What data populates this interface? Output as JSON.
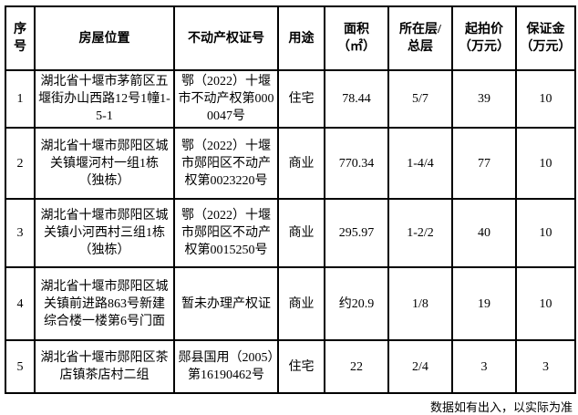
{
  "table": {
    "headers": {
      "no": "序\n号",
      "location": "房屋位置",
      "cert": "不动产权证号",
      "use": "用途",
      "area": "面积\n（㎡）",
      "floor": "所在层/\n总层",
      "start_price": "起拍价\n（万元）",
      "deposit": "保证金\n（万元）"
    },
    "rows": [
      {
        "no": "1",
        "location": "湖北省十堰市茅箭区五堰街办山西路12号1幢1-5-1",
        "cert": "鄂（2022）十堰市不动产权第0000047号",
        "use": "住宅",
        "area": "78.44",
        "floor": "5/7",
        "start_price": "39",
        "deposit": "10"
      },
      {
        "no": "2",
        "location": "湖北省十堰市郧阳区城关镇堰河村一组1栋（独栋）",
        "cert": "鄂（2022）十堰市郧阳区不动产权第0023220号",
        "use": "商业",
        "area": "770.34",
        "floor": "1-4/4",
        "start_price": "77",
        "deposit": "10"
      },
      {
        "no": "3",
        "location": "湖北省十堰市郧阳区城关镇小河西村三组1栋（独栋）",
        "cert": "鄂（2022）十堰市郧阳区不动产权第0015250号",
        "use": "商业",
        "area": "295.97",
        "floor": "1-2/2",
        "start_price": "40",
        "deposit": "10"
      },
      {
        "no": "4",
        "location": "湖北省十堰市郧阳区城关镇前进路863号新建综合楼一楼第6号门面",
        "cert": "暂未办理产权证",
        "use": "商业",
        "area": "约20.9",
        "floor": "1/8",
        "start_price": "19",
        "deposit": "10"
      },
      {
        "no": "5",
        "location": "湖北省十堰市郧阳区茶店镇茶店村二组",
        "cert": "郧县国用（2005）第16190462号",
        "use": "住宅",
        "area": "22",
        "floor": "2/4",
        "start_price": "3",
        "deposit": "3"
      }
    ]
  },
  "footer": {
    "note": "数据如有出入，以实际为准"
  }
}
